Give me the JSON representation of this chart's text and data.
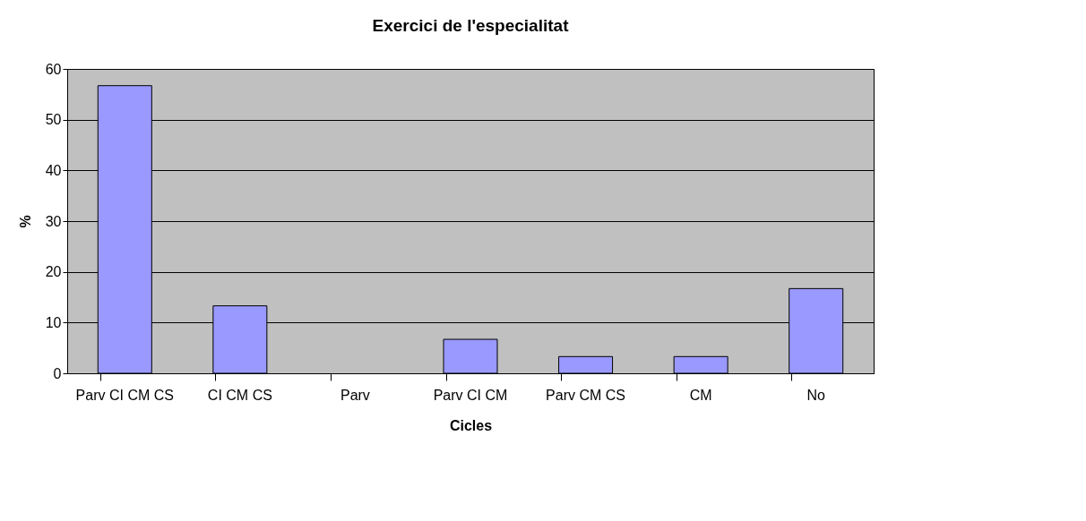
{
  "chart_data": {
    "type": "bar",
    "title": "Exercici de l'especialitat",
    "xlabel": "Cicles",
    "ylabel": "%",
    "categories": [
      "Parv CI CM CS",
      "CI CM CS",
      "Parv",
      "Parv CI CM",
      "Parv CM CS",
      "CM",
      "No"
    ],
    "values": [
      56.7,
      13.3,
      0,
      6.7,
      3.3,
      3.3,
      16.7
    ],
    "color": "#9999ff",
    "ylim": [
      0,
      60
    ],
    "yticks": [
      0,
      10,
      20,
      30,
      40,
      50,
      60
    ],
    "grid": "y"
  }
}
